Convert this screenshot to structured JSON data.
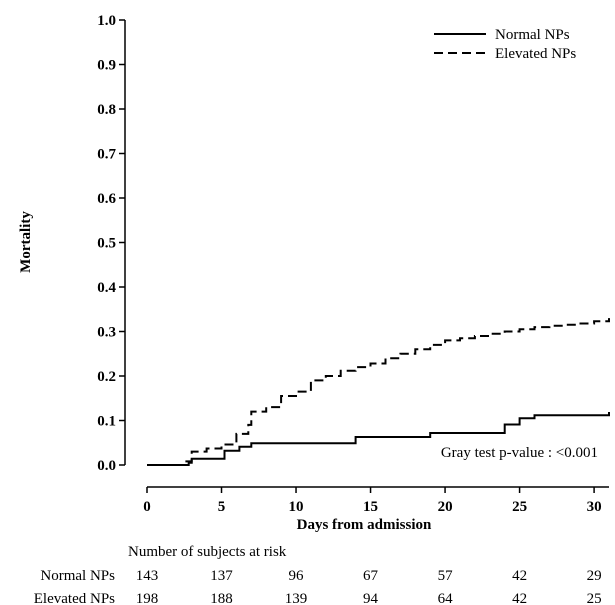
{
  "chart_data": {
    "type": "line",
    "step": true,
    "xlabel": "Days from admission",
    "ylabel": "Mortality",
    "xlim": [
      0,
      31
    ],
    "ylim": [
      0,
      1.0
    ],
    "xticks": [
      "0",
      "5",
      "10",
      "15",
      "20",
      "25",
      "30"
    ],
    "yticks": [
      "0.0",
      "0.1",
      "0.2",
      "0.3",
      "0.4",
      "0.5",
      "0.6",
      "0.7",
      "0.8",
      "0.9",
      "1.0"
    ],
    "legend_position": "top-right",
    "annotation": "Gray test p-value : <0.001",
    "series": [
      {
        "name": "Normal NPs",
        "style": "solid",
        "x": [
          0,
          2.8,
          3,
          5.2,
          6.2,
          7,
          14,
          19,
          24,
          25,
          26,
          31
        ],
        "y": [
          0,
          0.005,
          0.014,
          0.032,
          0.041,
          0.049,
          0.063,
          0.072,
          0.091,
          0.105,
          0.112,
          0.119
        ]
      },
      {
        "name": "Elevated NPs",
        "style": "dashed",
        "x": [
          0,
          2.5,
          3,
          4,
          5,
          6,
          6.8,
          7,
          8,
          9,
          10,
          11,
          12,
          13,
          14,
          15,
          16,
          17,
          18,
          19,
          20,
          21,
          22,
          23,
          24,
          25,
          26,
          27,
          28,
          29,
          30,
          31
        ],
        "y": [
          0,
          0.008,
          0.03,
          0.037,
          0.046,
          0.07,
          0.09,
          0.12,
          0.13,
          0.155,
          0.165,
          0.19,
          0.2,
          0.212,
          0.22,
          0.228,
          0.24,
          0.25,
          0.26,
          0.27,
          0.28,
          0.285,
          0.29,
          0.295,
          0.3,
          0.305,
          0.31,
          0.313,
          0.315,
          0.318,
          0.323,
          0.33
        ]
      }
    ],
    "risk_table": {
      "title": "Number of subjects at risk",
      "times": [
        0,
        5,
        10,
        15,
        20,
        25,
        30
      ],
      "rows": [
        {
          "label": "Normal NPs",
          "values": [
            "143",
            "137",
            "96",
            "67",
            "57",
            "42",
            "29"
          ]
        },
        {
          "label": "Elevated NPs",
          "values": [
            "198",
            "188",
            "139",
            "94",
            "64",
            "42",
            "25"
          ]
        }
      ]
    }
  }
}
